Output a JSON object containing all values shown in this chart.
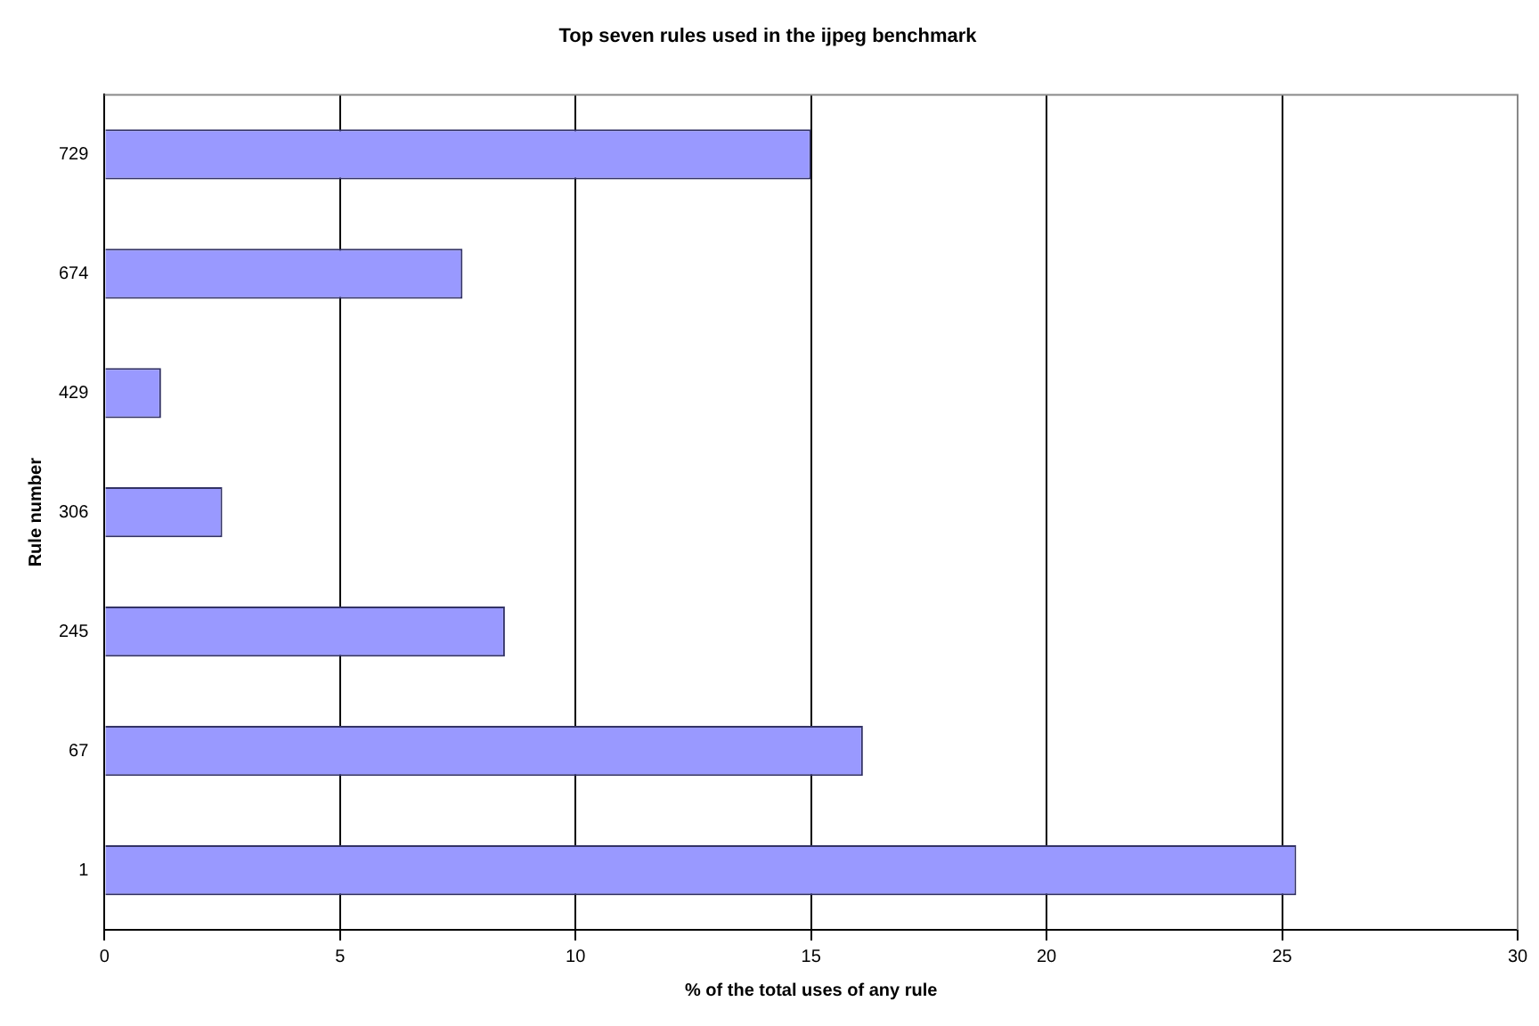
{
  "chart_data": {
    "type": "bar",
    "orientation": "horizontal",
    "title": "Top seven rules used in the ijpeg benchmark",
    "xlabel": "% of the total uses of any rule",
    "ylabel": "Rule number",
    "categories": [
      "729",
      "674",
      "429",
      "306",
      "245",
      "67",
      "1"
    ],
    "values": [
      15,
      7.6,
      1.2,
      2.5,
      8.5,
      16.1,
      25.3
    ],
    "color": "#9999ff",
    "xlim": [
      0,
      30
    ],
    "xticks": [
      0,
      5,
      10,
      15,
      20,
      25,
      30
    ],
    "grid": "x"
  }
}
